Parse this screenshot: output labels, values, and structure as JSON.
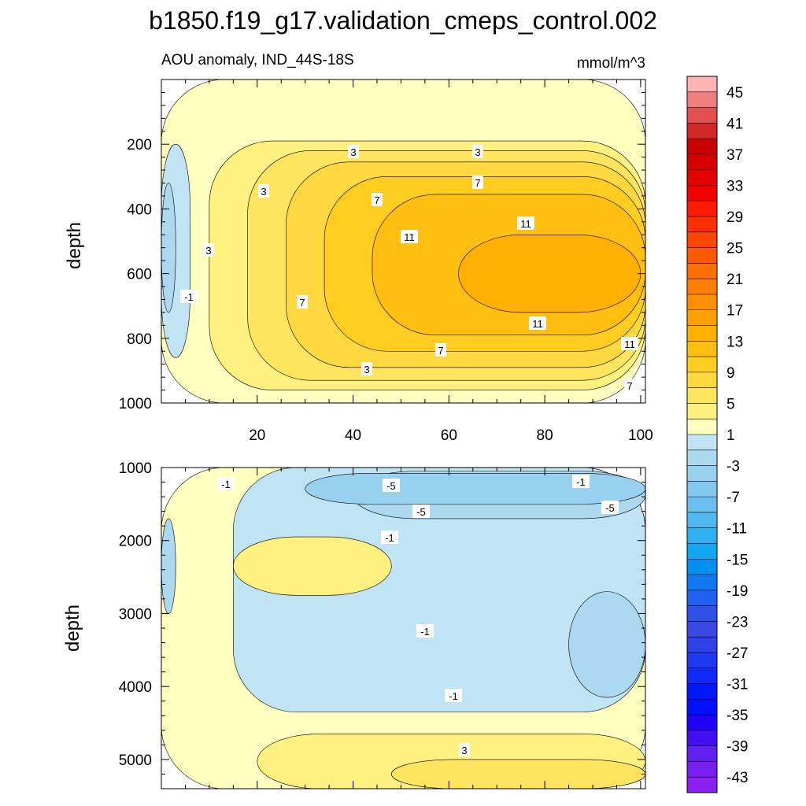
{
  "chart_data": [
    {
      "type": "contour",
      "title": "b1850.f19_g17.validation_cmeps_control.002",
      "subtitle": "AOU anomaly, IND_44S-18S",
      "units": "mmol/m^3",
      "xlabel": "",
      "ylabel": "depth",
      "xlim": [
        0,
        101
      ],
      "ylim": [
        0,
        1000
      ],
      "y_inverted": true,
      "xticks": [
        20,
        40,
        60,
        80,
        100
      ],
      "yticks": [
        200,
        400,
        600,
        800,
        1000
      ],
      "contour_labels": [
        "3",
        "3",
        "3",
        "3",
        "7",
        "7",
        "7",
        "7",
        "7",
        "11",
        "11",
        "11",
        "11",
        "-1",
        "3"
      ],
      "fill_bands": [
        {
          "x0": 0,
          "x1": 101,
          "y0": 0,
          "y1": 1000,
          "level": 1
        },
        {
          "x0": 10,
          "x1": 101,
          "y0": 190,
          "y1": 960,
          "level": 3
        },
        {
          "x0": 18,
          "x1": 101,
          "y0": 220,
          "y1": 930,
          "level": 5
        },
        {
          "x0": 26,
          "x1": 101,
          "y0": 255,
          "y1": 890,
          "level": 7
        },
        {
          "x0": 34,
          "x1": 101,
          "y0": 300,
          "y1": 840,
          "level": 9
        },
        {
          "x0": 44,
          "x1": 101,
          "y0": 355,
          "y1": 790,
          "level": 11
        },
        {
          "x0": 62,
          "x1": 100,
          "y0": 480,
          "y1": 720,
          "level": 13
        },
        {
          "x0": 0,
          "x1": 6,
          "y0": 200,
          "y1": 860,
          "level": -1
        },
        {
          "x0": 0,
          "x1": 3,
          "y0": 320,
          "y1": 720,
          "level": -3
        }
      ]
    },
    {
      "type": "contour",
      "xlabel": "",
      "ylabel": "depth",
      "xlim": [
        0,
        101
      ],
      "ylim": [
        1000,
        5400
      ],
      "y_inverted": true,
      "yticks": [
        1000,
        2000,
        3000,
        4000,
        5000
      ],
      "contour_labels": [
        "-1",
        "-5",
        "-5",
        "-1",
        "-1",
        "-1",
        "-1",
        "-5",
        "3"
      ],
      "fill_bands": [
        {
          "x0": 0,
          "x1": 101,
          "y0": 1000,
          "y1": 5400,
          "level": 1
        },
        {
          "x0": 15,
          "x1": 101,
          "y0": 1000,
          "y1": 4350,
          "level": -1
        },
        {
          "x0": 40,
          "x1": 101,
          "y0": 1050,
          "y1": 1700,
          "level": -3
        },
        {
          "x0": 30,
          "x1": 101,
          "y0": 1080,
          "y1": 1500,
          "level": -5
        },
        {
          "x0": 85,
          "x1": 101,
          "y0": 2700,
          "y1": 4150,
          "level": -3
        },
        {
          "x0": 15,
          "x1": 48,
          "y0": 1950,
          "y1": 2750,
          "level": 3
        },
        {
          "x0": 0,
          "x1": 3,
          "y0": 1700,
          "y1": 3000,
          "level": -3
        },
        {
          "x0": 20,
          "x1": 101,
          "y0": 4650,
          "y1": 5400,
          "level": 3
        },
        {
          "x0": 48,
          "x1": 101,
          "y0": 5000,
          "y1": 5400,
          "level": 5
        }
      ]
    }
  ],
  "colorbar": {
    "labels": [
      "45",
      "41",
      "37",
      "33",
      "29",
      "25",
      "21",
      "17",
      "13",
      "9",
      "5",
      "1",
      "-3",
      "-7",
      "-11",
      "-15",
      "-19",
      "-23",
      "-27",
      "-31",
      "-35",
      "-39",
      "-43"
    ],
    "levels": [
      45,
      43,
      41,
      39,
      37,
      35,
      33,
      31,
      29,
      27,
      25,
      23,
      21,
      19,
      17,
      15,
      13,
      11,
      9,
      7,
      5,
      3,
      1,
      -1,
      -3,
      -5,
      -7,
      -9,
      -11,
      -13,
      -15,
      -17,
      -19,
      -21,
      -23,
      -25,
      -27,
      -29,
      -31,
      -33,
      -35,
      -37,
      -39,
      -41,
      -43,
      -45
    ],
    "colors": [
      "#ffb3b3",
      "#f08080",
      "#e05050",
      "#d22828",
      "#c80000",
      "#d60000",
      "#e40000",
      "#f00000",
      "#ff1a00",
      "#ff3000",
      "#ff4600",
      "#ff5a00",
      "#ff6e00",
      "#ff8000",
      "#ff9000",
      "#ffa000",
      "#ffb000",
      "#ffbe10",
      "#ffcc20",
      "#ffd840",
      "#ffe460",
      "#fff080",
      "#ffffc0",
      "#c0e4f4",
      "#acd8f0",
      "#98d0f0",
      "#84c8f0",
      "#6cc0f0",
      "#50b8f0",
      "#30b0f0",
      "#10a8f0",
      "#0090f0",
      "#1078f0",
      "#2060f0",
      "#3050e8",
      "#3848e0",
      "#3040e8",
      "#2038f0",
      "#1028f8",
      "#0018ff",
      "#0010ff",
      "#2000f8",
      "#4010f0",
      "#6020f0",
      "#7820f0",
      "#8c20f0"
    ]
  }
}
